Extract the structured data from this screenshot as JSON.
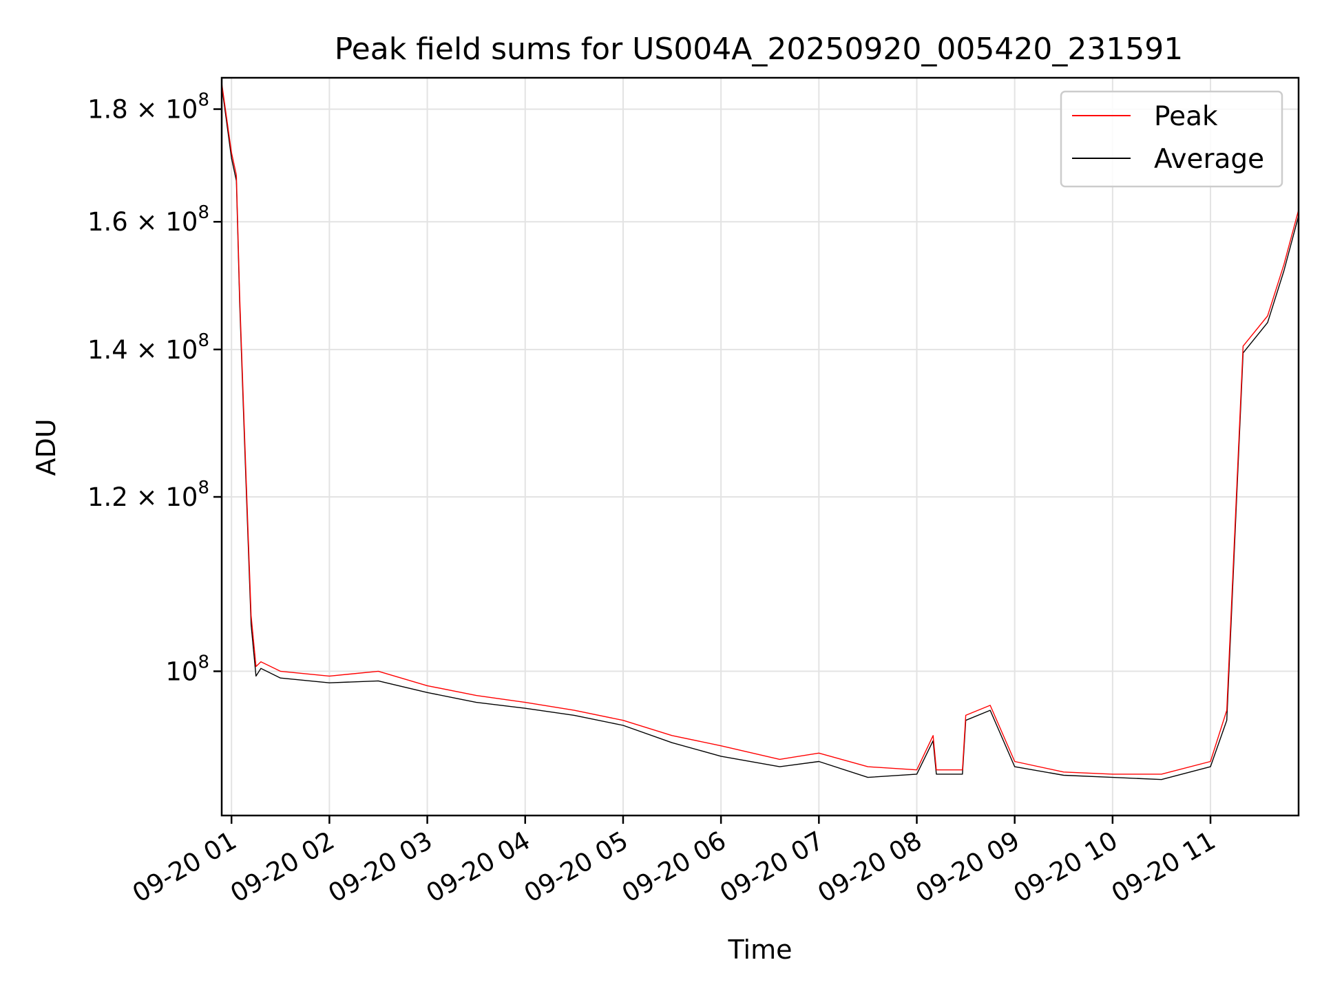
{
  "chart_data": {
    "type": "line",
    "title": "Peak field sums for US004A_20250920_005420_231591",
    "xlabel": "Time",
    "ylabel": "ADU",
    "y_scale": "log",
    "ylim": [
      86000000,
      186000000
    ],
    "xlim": [
      "2025-09-20 00:54",
      "2025-09-20 11:54"
    ],
    "grid": true,
    "legend_position": "top-right",
    "x_ticks": [
      {
        "value": "2025-09-20 01:00",
        "label": "09-20 01"
      },
      {
        "value": "2025-09-20 02:00",
        "label": "09-20 02"
      },
      {
        "value": "2025-09-20 03:00",
        "label": "09-20 03"
      },
      {
        "value": "2025-09-20 04:00",
        "label": "09-20 04"
      },
      {
        "value": "2025-09-20 05:00",
        "label": "09-20 05"
      },
      {
        "value": "2025-09-20 06:00",
        "label": "09-20 06"
      },
      {
        "value": "2025-09-20 07:00",
        "label": "09-20 07"
      },
      {
        "value": "2025-09-20 08:00",
        "label": "09-20 08"
      },
      {
        "value": "2025-09-20 09:00",
        "label": "09-20 09"
      },
      {
        "value": "2025-09-20 10:00",
        "label": "09-20 10"
      },
      {
        "value": "2025-09-20 11:00",
        "label": "09-20 11"
      }
    ],
    "y_ticks": [
      {
        "value": 180000000,
        "mantissa": "1.8",
        "times": " × ",
        "base": "10",
        "exp": "8"
      },
      {
        "value": 160000000,
        "mantissa": "1.6",
        "times": " × ",
        "base": "10",
        "exp": "8"
      },
      {
        "value": 140000000,
        "mantissa": "1.4",
        "times": " × ",
        "base": "10",
        "exp": "8"
      },
      {
        "value": 120000000,
        "mantissa": "1.2",
        "times": " × ",
        "base": "10",
        "exp": "8"
      },
      {
        "value": 100000000,
        "mantissa": "",
        "times": "",
        "base": "10",
        "exp": "8"
      }
    ],
    "series": [
      {
        "name": "Peak",
        "color": "#ff0000",
        "points": [
          [
            "2025-09-20 00:54",
            185000000
          ],
          [
            "2025-09-20 01:00",
            172000000
          ],
          [
            "2025-09-20 01:03",
            168000000
          ],
          [
            "2025-09-20 01:05",
            148000000
          ],
          [
            "2025-09-20 01:08",
            128000000
          ],
          [
            "2025-09-20 01:12",
            106000000
          ],
          [
            "2025-09-20 01:15",
            100500000
          ],
          [
            "2025-09-20 01:18",
            101000000
          ],
          [
            "2025-09-20 01:30",
            100000000
          ],
          [
            "2025-09-20 02:00",
            99500000
          ],
          [
            "2025-09-20 02:30",
            100000000
          ],
          [
            "2025-09-20 03:00",
            98500000
          ],
          [
            "2025-09-20 03:30",
            97500000
          ],
          [
            "2025-09-20 04:00",
            96800000
          ],
          [
            "2025-09-20 04:30",
            96000000
          ],
          [
            "2025-09-20 05:00",
            95000000
          ],
          [
            "2025-09-20 05:30",
            93500000
          ],
          [
            "2025-09-20 06:00",
            92500000
          ],
          [
            "2025-09-20 06:36",
            91200000
          ],
          [
            "2025-09-20 07:00",
            91800000
          ],
          [
            "2025-09-20 07:30",
            90500000
          ],
          [
            "2025-09-20 08:00",
            90200000
          ],
          [
            "2025-09-20 08:10",
            93500000
          ],
          [
            "2025-09-20 08:12",
            90200000
          ],
          [
            "2025-09-20 08:28",
            90200000
          ],
          [
            "2025-09-20 08:30",
            95500000
          ],
          [
            "2025-09-20 08:45",
            96500000
          ],
          [
            "2025-09-20 09:00",
            91000000
          ],
          [
            "2025-09-20 09:30",
            90000000
          ],
          [
            "2025-09-20 10:00",
            89800000
          ],
          [
            "2025-09-20 10:30",
            89800000
          ],
          [
            "2025-09-20 11:00",
            91000000
          ],
          [
            "2025-09-20 11:10",
            96000000
          ],
          [
            "2025-09-20 11:20",
            140500000
          ],
          [
            "2025-09-20 11:35",
            145000000
          ],
          [
            "2025-09-20 11:45",
            153000000
          ],
          [
            "2025-09-20 11:54",
            162000000
          ]
        ]
      },
      {
        "name": "Average",
        "color": "#000000",
        "points": [
          [
            "2025-09-20 00:54",
            184500000
          ],
          [
            "2025-09-20 01:00",
            171000000
          ],
          [
            "2025-09-20 01:03",
            167000000
          ],
          [
            "2025-09-20 01:05",
            147000000
          ],
          [
            "2025-09-20 01:08",
            127000000
          ],
          [
            "2025-09-20 01:12",
            105000000
          ],
          [
            "2025-09-20 01:15",
            99500000
          ],
          [
            "2025-09-20 01:18",
            100300000
          ],
          [
            "2025-09-20 01:30",
            99300000
          ],
          [
            "2025-09-20 02:00",
            98800000
          ],
          [
            "2025-09-20 02:30",
            99000000
          ],
          [
            "2025-09-20 03:00",
            97800000
          ],
          [
            "2025-09-20 03:30",
            96800000
          ],
          [
            "2025-09-20 04:00",
            96200000
          ],
          [
            "2025-09-20 04:30",
            95500000
          ],
          [
            "2025-09-20 05:00",
            94500000
          ],
          [
            "2025-09-20 05:30",
            92800000
          ],
          [
            "2025-09-20 06:00",
            91500000
          ],
          [
            "2025-09-20 06:36",
            90500000
          ],
          [
            "2025-09-20 07:00",
            91000000
          ],
          [
            "2025-09-20 07:30",
            89500000
          ],
          [
            "2025-09-20 08:00",
            89800000
          ],
          [
            "2025-09-20 08:10",
            93000000
          ],
          [
            "2025-09-20 08:12",
            89800000
          ],
          [
            "2025-09-20 08:28",
            89800000
          ],
          [
            "2025-09-20 08:30",
            95000000
          ],
          [
            "2025-09-20 08:45",
            96000000
          ],
          [
            "2025-09-20 09:00",
            90500000
          ],
          [
            "2025-09-20 09:30",
            89700000
          ],
          [
            "2025-09-20 10:00",
            89500000
          ],
          [
            "2025-09-20 10:30",
            89300000
          ],
          [
            "2025-09-20 11:00",
            90500000
          ],
          [
            "2025-09-20 11:10",
            95000000
          ],
          [
            "2025-09-20 11:20",
            139500000
          ],
          [
            "2025-09-20 11:35",
            144000000
          ],
          [
            "2025-09-20 11:45",
            152000000
          ],
          [
            "2025-09-20 11:54",
            161000000
          ]
        ]
      }
    ]
  }
}
